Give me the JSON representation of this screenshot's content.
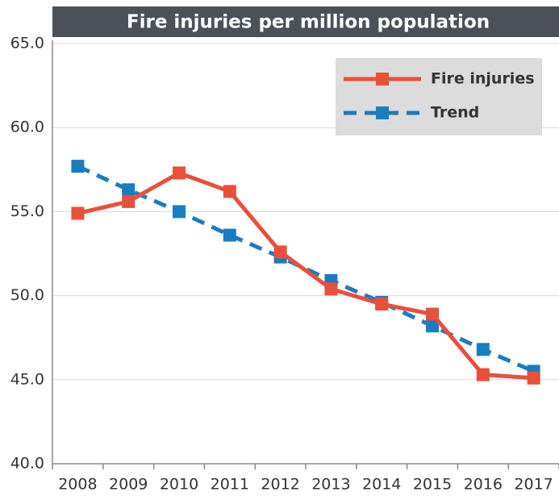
{
  "chart_data": {
    "type": "line",
    "title": "Fire injuries per million population",
    "categories": [
      "2008",
      "2009",
      "2010",
      "2011",
      "2012",
      "2013",
      "2014",
      "2015",
      "2016",
      "2017"
    ],
    "series": [
      {
        "name": "Fire injuries",
        "color": "#e8503a",
        "dashed": false,
        "values": [
          54.9,
          55.6,
          57.3,
          56.2,
          52.6,
          50.4,
          49.5,
          48.9,
          45.3,
          45.1
        ]
      },
      {
        "name": "Trend",
        "color": "#1a7cc1",
        "dashed": true,
        "values": [
          57.7,
          56.3,
          55.0,
          53.6,
          52.3,
          50.9,
          49.6,
          48.2,
          46.8,
          45.5
        ]
      }
    ],
    "ylim": [
      40,
      65
    ],
    "yticks": [
      {
        "value": 40,
        "label": "40.0"
      },
      {
        "value": 45,
        "label": "45.0"
      },
      {
        "value": 50,
        "label": "50.0"
      },
      {
        "value": 55,
        "label": "55.0"
      },
      {
        "value": 60,
        "label": "60.0"
      },
      {
        "value": 65,
        "label": "65.0"
      }
    ],
    "grid": true,
    "legend": "upper right"
  }
}
